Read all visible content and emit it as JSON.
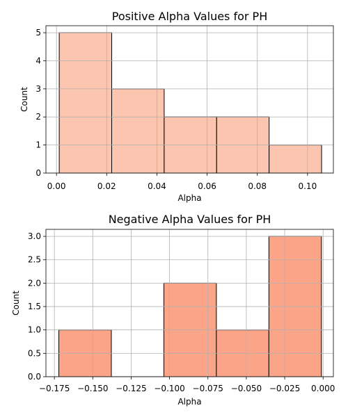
{
  "chart_data": [
    {
      "type": "bar",
      "title": "Positive Alpha Values for PH",
      "xlabel": "Alpha",
      "ylabel": "Count",
      "xlim": [
        -0.0042,
        0.1103
      ],
      "ylim": [
        0,
        5.25
      ],
      "bins": [
        {
          "x0": 0.0011,
          "x1": 0.022,
          "count": 5
        },
        {
          "x0": 0.022,
          "x1": 0.0429,
          "count": 3
        },
        {
          "x0": 0.0429,
          "x1": 0.0638,
          "count": 2
        },
        {
          "x0": 0.0638,
          "x1": 0.0847,
          "count": 2
        },
        {
          "x0": 0.0847,
          "x1": 0.1056,
          "count": 1
        }
      ],
      "xticks": [
        0.0,
        0.02,
        0.04,
        0.06,
        0.08,
        0.1
      ],
      "xtick_labels": [
        "0.00",
        "0.02",
        "0.04",
        "0.06",
        "0.08",
        "0.10"
      ],
      "yticks": [
        0,
        1,
        2,
        3,
        4,
        5
      ],
      "ytick_labels": [
        "0",
        "1",
        "2",
        "3",
        "4",
        "5"
      ],
      "bar_color": "#fcc5b0",
      "edge_color": "#000000",
      "grid": true
    },
    {
      "type": "bar",
      "title": "Negative Alpha Values for PH",
      "xlabel": "Alpha",
      "ylabel": "Count",
      "xlim": [
        -0.1805,
        0.0067
      ],
      "ylim": [
        0,
        3.15
      ],
      "bins": [
        {
          "x0": -0.1721,
          "x1": -0.1379,
          "count": 1
        },
        {
          "x0": -0.1379,
          "x1": -0.1037,
          "count": 0
        },
        {
          "x0": -0.1037,
          "x1": -0.0695,
          "count": 2
        },
        {
          "x0": -0.0695,
          "x1": -0.0353,
          "count": 1
        },
        {
          "x0": -0.0353,
          "x1": -0.0011,
          "count": 3
        }
      ],
      "xticks": [
        -0.175,
        -0.15,
        -0.125,
        -0.1,
        -0.075,
        -0.05,
        -0.025,
        0.0
      ],
      "xtick_labels": [
        "−0.175",
        "−0.150",
        "−0.125",
        "−0.100",
        "−0.075",
        "−0.050",
        "−0.025",
        "0.000"
      ],
      "yticks": [
        0,
        0.5,
        1,
        1.5,
        2,
        2.5,
        3
      ],
      "ytick_labels": [
        "0.0",
        "0.5",
        "1.0",
        "1.5",
        "2.0",
        "2.5",
        "3.0"
      ],
      "bar_color": "#fca487",
      "edge_color": "#000000",
      "grid": true
    }
  ]
}
